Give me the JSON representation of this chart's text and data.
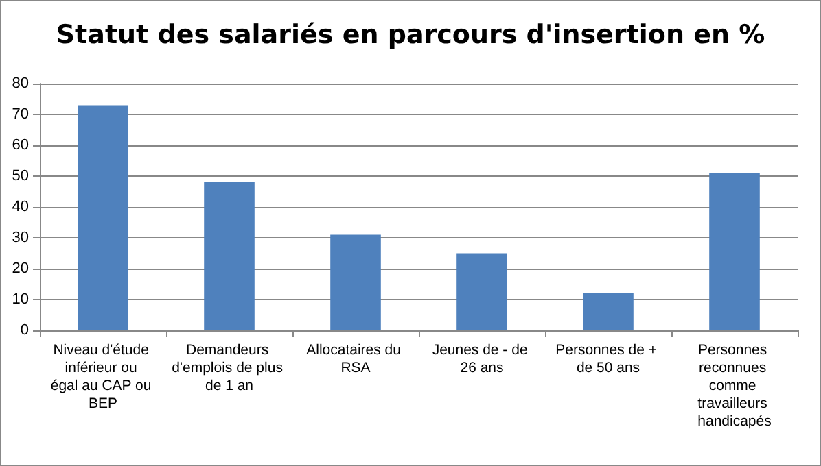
{
  "chart_data": {
    "type": "bar",
    "title": "Statut des salariés en parcours d'insertion en %",
    "categories": [
      "Niveau d'étude inférieur ou égal au CAP ou BEP",
      "Demandeurs d'emplois de plus de 1 an",
      "Allocataires du RSA",
      "Jeunes de - de 26 ans",
      "Personnes de + de 50 ans",
      "Personnes reconnues comme travailleurs handicapés"
    ],
    "values": [
      73,
      48,
      31,
      25,
      12,
      51
    ],
    "color": "#4f81bd",
    "ylim": [
      0,
      80
    ],
    "yticks": [
      0,
      10,
      20,
      30,
      40,
      50,
      60,
      70,
      80
    ],
    "grid": "y"
  }
}
